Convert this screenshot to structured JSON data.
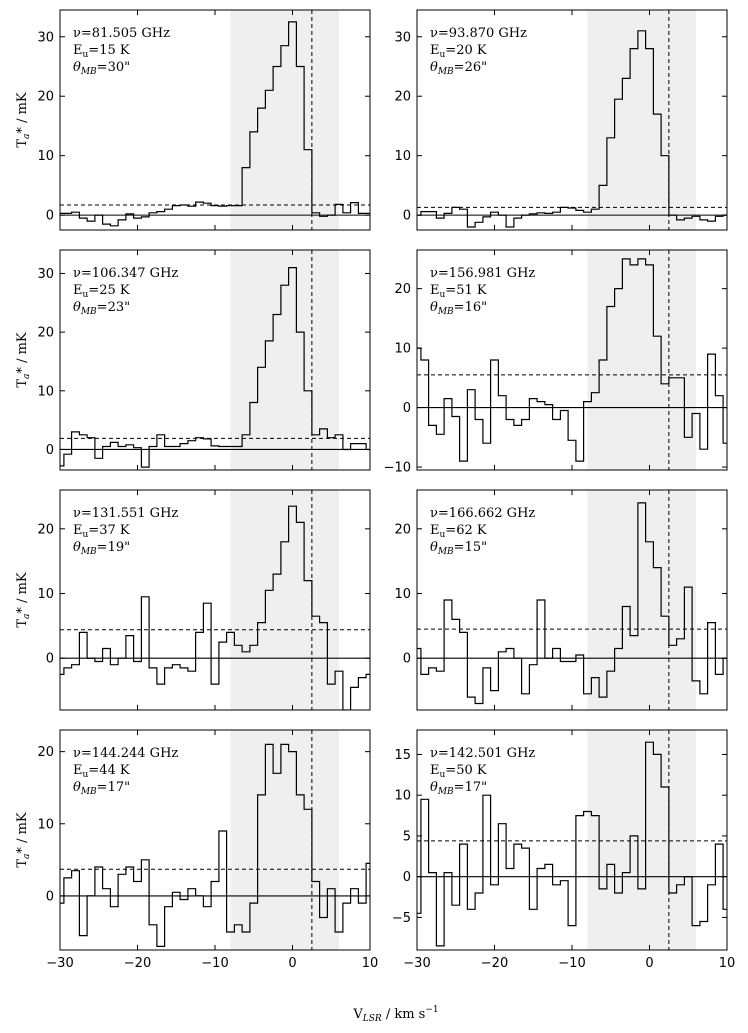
{
  "figure": {
    "xlabel_main": "V",
    "xlabel_sub": "LSR",
    "xlabel_unit": " / km s",
    "xlabel_sup": "−1",
    "ylabel_main": "T",
    "ylabel_sub": "a",
    "ylabel_rest": "* / mK"
  },
  "chart_data": [
    {
      "type": "line",
      "step": true,
      "freq": "ν=81.505 GHz",
      "eu": "E",
      "eu_sub": "u",
      "eu_val": "=15 K",
      "theta": "θ",
      "theta_sub": "MB",
      "theta_val": "=30\"",
      "xlim": [
        -30,
        10
      ],
      "ylim": [
        -2.5,
        34.5
      ],
      "yticks": [
        0,
        10,
        20,
        30
      ],
      "xticks": [
        -30,
        -20,
        -10,
        0,
        10
      ],
      "show_xticklabels": false,
      "show_ylabel": true,
      "noise_level": 1.7,
      "shade": [
        -8,
        6
      ],
      "vline": 2.5,
      "x": [
        -30,
        -29,
        -28,
        -27,
        -26,
        -25,
        -24,
        -23,
        -22,
        -21,
        -20,
        -19,
        -18,
        -17,
        -16,
        -15,
        -14,
        -13,
        -12,
        -11,
        -10,
        -9,
        -8,
        -7,
        -6,
        -5,
        -4,
        -3,
        -2,
        -1,
        0,
        1,
        2,
        3,
        4,
        5,
        6,
        7,
        8,
        9,
        10
      ],
      "y": [
        0.3,
        0.3,
        0.5,
        -0.5,
        -1.0,
        0.0,
        -1.5,
        -1.8,
        -0.8,
        0.2,
        -0.5,
        -0.3,
        0.4,
        0.6,
        1.0,
        1.6,
        1.7,
        1.5,
        2.2,
        2.0,
        1.6,
        1.5,
        1.6,
        1.6,
        8.0,
        14.0,
        18.0,
        21.0,
        25.0,
        28.5,
        32.5,
        25.0,
        11.0,
        0.4,
        -0.2,
        0.0,
        1.8,
        0.4,
        2.1,
        0.3,
        0.3
      ]
    },
    {
      "type": "line",
      "step": true,
      "freq": "ν=93.870 GHz",
      "eu": "E",
      "eu_sub": "u",
      "eu_val": "=20 K",
      "theta": "θ",
      "theta_sub": "MB",
      "theta_val": "=26\"",
      "xlim": [
        -30,
        10
      ],
      "ylim": [
        -2.5,
        34.5
      ],
      "yticks": [
        0,
        10,
        20,
        30
      ],
      "xticks": [
        -30,
        -20,
        -10,
        0,
        10
      ],
      "show_xticklabels": false,
      "show_ylabel": false,
      "noise_level": 1.3,
      "shade": [
        -8,
        6
      ],
      "vline": 2.5,
      "x": [
        -30,
        -29,
        -28,
        -27,
        -26,
        -25,
        -24,
        -23,
        -22,
        -21,
        -20,
        -19,
        -18,
        -17,
        -16,
        -15,
        -14,
        -13,
        -12,
        -11,
        -10,
        -9,
        -8,
        -7,
        -6,
        -5,
        -4,
        -3,
        -2,
        -1,
        0,
        1,
        2,
        3,
        4,
        5,
        6,
        7,
        8,
        9,
        10
      ],
      "y": [
        0.0,
        0.6,
        0.6,
        -0.5,
        0.3,
        1.3,
        1.0,
        -2.0,
        -1.2,
        -0.3,
        0.5,
        0.0,
        -2.0,
        -0.5,
        0.0,
        0.2,
        0.4,
        0.3,
        0.5,
        1.3,
        1.2,
        0.8,
        0.5,
        1.0,
        5.0,
        13.0,
        19.5,
        23.0,
        28.0,
        31.0,
        28.0,
        17.0,
        10.0,
        0.0,
        -0.8,
        -0.5,
        -0.2,
        -0.8,
        -1.0,
        -0.2,
        0.0
      ]
    },
    {
      "type": "line",
      "step": true,
      "freq": "ν=106.347 GHz",
      "eu": "E",
      "eu_sub": "u",
      "eu_val": "=25 K",
      "theta": "θ",
      "theta_sub": "MB",
      "theta_val": "=23\"",
      "xlim": [
        -30,
        10
      ],
      "ylim": [
        -3.5,
        34.0
      ],
      "yticks": [
        0,
        10,
        20,
        30
      ],
      "xticks": [
        -30,
        -20,
        -10,
        0,
        10
      ],
      "show_xticklabels": false,
      "show_ylabel": true,
      "noise_level": 1.9,
      "shade": [
        -8,
        6
      ],
      "vline": 2.5,
      "x": [
        -30,
        -29,
        -28,
        -27,
        -26,
        -25,
        -24,
        -23,
        -22,
        -21,
        -20,
        -19,
        -18,
        -17,
        -16,
        -15,
        -14,
        -13,
        -12,
        -11,
        -10,
        -9,
        -8,
        -7,
        -6,
        -5,
        -4,
        -3,
        -2,
        -1,
        0,
        1,
        2,
        3,
        4,
        5,
        6,
        7,
        8,
        9,
        10
      ],
      "y": [
        -2.8,
        -0.8,
        3.0,
        2.5,
        2.0,
        -1.5,
        0.5,
        1.2,
        0.5,
        0.8,
        0.3,
        -3.0,
        0.5,
        2.5,
        0.5,
        0.5,
        1.0,
        1.5,
        2.0,
        1.8,
        0.6,
        0.5,
        0.5,
        0.5,
        2.5,
        8.0,
        14.0,
        18.5,
        23.0,
        28.0,
        31.0,
        20.0,
        10.0,
        2.5,
        3.5,
        2.0,
        2.5,
        0.0,
        1.0,
        1.0,
        0.0
      ]
    },
    {
      "type": "line",
      "step": true,
      "freq": "ν=156.981 GHz",
      "eu": "E",
      "eu_sub": "u",
      "eu_val": "=51 K",
      "theta": "θ",
      "theta_sub": "MB",
      "theta_val": "=16\"",
      "xlim": [
        -30,
        10
      ],
      "ylim": [
        -10.5,
        26.5
      ],
      "yticks": [
        -10,
        0,
        10,
        20
      ],
      "xticks": [
        -30,
        -20,
        -10,
        0,
        10
      ],
      "show_xticklabels": false,
      "show_ylabel": false,
      "noise_level": 5.5,
      "shade": [
        -8,
        6
      ],
      "vline": 2.5,
      "x": [
        -30,
        -29,
        -28,
        -27,
        -26,
        -25,
        -24,
        -23,
        -22,
        -21,
        -20,
        -19,
        -18,
        -17,
        -16,
        -15,
        -14,
        -13,
        -12,
        -11,
        -10,
        -9,
        -8,
        -7,
        -6,
        -5,
        -4,
        -3,
        -2,
        -1,
        0,
        1,
        2,
        3,
        4,
        5,
        6,
        7,
        8,
        9,
        10
      ],
      "y": [
        10.0,
        8.0,
        -3.0,
        -4.5,
        1.5,
        -1.5,
        -9.0,
        3.0,
        -2.0,
        -6.0,
        8.0,
        2.0,
        -2.0,
        -3.0,
        -2.0,
        1.5,
        1.0,
        0.5,
        -2.0,
        -0.5,
        -5.5,
        -9.0,
        1.0,
        2.5,
        8.0,
        17.0,
        20.0,
        25.0,
        24.0,
        25.0,
        24.0,
        12.0,
        4.0,
        5.0,
        5.0,
        -5.0,
        -1.0,
        -7.0,
        9.0,
        2.0,
        -6.0
      ]
    },
    {
      "type": "line",
      "step": true,
      "freq": "ν=131.551 GHz",
      "eu": "E",
      "eu_sub": "u",
      "eu_val": "=37 K",
      "theta": "θ",
      "theta_sub": "MB",
      "theta_val": "=19\"",
      "xlim": [
        -30,
        10
      ],
      "ylim": [
        -8.0,
        26.0
      ],
      "yticks": [
        0,
        10,
        20
      ],
      "xticks": [
        -30,
        -20,
        -10,
        0,
        10
      ],
      "show_xticklabels": false,
      "show_ylabel": true,
      "noise_level": 4.4,
      "shade": [
        -8,
        6
      ],
      "vline": 2.5,
      "x": [
        -30,
        -29,
        -28,
        -27,
        -26,
        -25,
        -24,
        -23,
        -22,
        -21,
        -20,
        -19,
        -18,
        -17,
        -16,
        -15,
        -14,
        -13,
        -12,
        -11,
        -10,
        -9,
        -8,
        -7,
        -6,
        -5,
        -4,
        -3,
        -2,
        -1,
        0,
        1,
        2,
        3,
        4,
        5,
        6,
        7,
        8,
        9,
        10
      ],
      "y": [
        -2.5,
        -1.5,
        -1.0,
        4.0,
        0.0,
        -0.5,
        1.5,
        -1.0,
        0.0,
        3.5,
        -0.5,
        9.5,
        -1.5,
        -4.0,
        -1.5,
        -1.0,
        -1.5,
        -2.0,
        4.0,
        8.5,
        -4.0,
        2.5,
        4.0,
        2.0,
        1.0,
        2.0,
        5.5,
        10.5,
        13.0,
        18.0,
        23.5,
        21.0,
        12.0,
        6.5,
        5.5,
        -4.0,
        -2.0,
        -8.0,
        -4.5,
        -3.0,
        -2.5
      ]
    },
    {
      "type": "line",
      "step": true,
      "freq": "ν=166.662 GHz",
      "eu": "E",
      "eu_sub": "u",
      "eu_val": "=62 K",
      "theta": "θ",
      "theta_sub": "MB",
      "theta_val": "=15\"",
      "xlim": [
        -30,
        10
      ],
      "ylim": [
        -8.0,
        26.0
      ],
      "yticks": [
        0,
        10,
        20
      ],
      "xticks": [
        -30,
        -20,
        -10,
        0,
        10
      ],
      "show_xticklabels": false,
      "show_ylabel": false,
      "noise_level": 4.5,
      "shade": [
        -8,
        6
      ],
      "vline": 2.5,
      "x": [
        -30,
        -29,
        -28,
        -27,
        -26,
        -25,
        -24,
        -23,
        -22,
        -21,
        -20,
        -19,
        -18,
        -17,
        -16,
        -15,
        -14,
        -13,
        -12,
        -11,
        -10,
        -9,
        -8,
        -7,
        -6,
        -5,
        -4,
        -3,
        -2,
        -1,
        0,
        1,
        2,
        3,
        4,
        5,
        6,
        7,
        8,
        9,
        10
      ],
      "y": [
        1.5,
        -2.5,
        -1.5,
        -2.0,
        9.0,
        6.0,
        4.0,
        -6.0,
        -7.0,
        -1.5,
        -5.0,
        1.0,
        1.5,
        0.0,
        -5.5,
        -1.0,
        9.0,
        0.0,
        1.5,
        -0.5,
        -0.5,
        0.5,
        -5.5,
        -3.0,
        -6.0,
        -2.0,
        1.5,
        8.0,
        3.5,
        24.0,
        18.0,
        14.0,
        6.5,
        2.0,
        3.0,
        11.0,
        -3.5,
        -5.5,
        5.5,
        -2.5,
        0.0
      ]
    },
    {
      "type": "line",
      "step": true,
      "freq": "ν=144.244 GHz",
      "eu": "E",
      "eu_sub": "u",
      "eu_val": "=44 K",
      "theta": "θ",
      "theta_sub": "MB",
      "theta_val": "=17\"",
      "xlim": [
        -30,
        10
      ],
      "ylim": [
        -7.5,
        23.0
      ],
      "yticks": [
        0,
        10,
        20
      ],
      "xticks": [
        -30,
        -20,
        -10,
        0,
        10
      ],
      "show_xticklabels": true,
      "show_ylabel": true,
      "noise_level": 3.7,
      "shade": [
        -8,
        6
      ],
      "vline": 2.5,
      "x": [
        -30,
        -29,
        -28,
        -27,
        -26,
        -25,
        -24,
        -23,
        -22,
        -21,
        -20,
        -19,
        -18,
        -17,
        -16,
        -15,
        -14,
        -13,
        -12,
        -11,
        -10,
        -9,
        -8,
        -7,
        -6,
        -5,
        -4,
        -3,
        -2,
        -1,
        0,
        1,
        2,
        3,
        4,
        5,
        6,
        7,
        8,
        9,
        10
      ],
      "y": [
        -1.0,
        2.5,
        3.5,
        -5.5,
        0.0,
        4.0,
        1.0,
        -1.5,
        3.0,
        4.0,
        2.0,
        5.0,
        -4.0,
        -7.0,
        -1.5,
        0.5,
        -0.5,
        1.0,
        0.0,
        -1.5,
        2.0,
        9.0,
        -5.0,
        -4.0,
        -5.0,
        -1.0,
        14.0,
        21.0,
        17.0,
        21.0,
        20.0,
        14.0,
        12.0,
        2.0,
        -3.0,
        1.0,
        -5.0,
        -1.0,
        1.0,
        -1.0,
        4.5
      ]
    },
    {
      "type": "line",
      "step": true,
      "freq": "ν=142.501 GHz",
      "eu": "E",
      "eu_sub": "u",
      "eu_val": "=50 K",
      "theta": "θ",
      "theta_sub": "MB",
      "theta_val": "=17\"",
      "xlim": [
        -30,
        10
      ],
      "ylim": [
        -9.0,
        18.0
      ],
      "yticks": [
        -5,
        0,
        5,
        10,
        15
      ],
      "xticks": [
        -30,
        -20,
        -10,
        0,
        10
      ],
      "show_xticklabels": true,
      "show_ylabel": false,
      "noise_level": 4.4,
      "shade": [
        -8,
        6
      ],
      "vline": 2.5,
      "x": [
        -30,
        -29,
        -28,
        -27,
        -26,
        -25,
        -24,
        -23,
        -22,
        -21,
        -20,
        -19,
        -18,
        -17,
        -16,
        -15,
        -14,
        -13,
        -12,
        -11,
        -10,
        -9,
        -8,
        -7,
        -6,
        -5,
        -4,
        -3,
        -2,
        -1,
        0,
        1,
        2,
        3,
        4,
        5,
        6,
        7,
        8,
        9,
        10
      ],
      "y": [
        -4.5,
        9.5,
        0.5,
        -8.5,
        0.5,
        -3.5,
        4.0,
        -4.0,
        -2.0,
        10.0,
        -1.0,
        6.5,
        1.0,
        4.0,
        3.5,
        -4.0,
        1.0,
        1.5,
        -1.0,
        -0.5,
        -6.0,
        7.5,
        8.0,
        7.5,
        -1.5,
        1.5,
        -2.0,
        0.5,
        5.0,
        -1.5,
        16.5,
        15.0,
        11.0,
        -2.0,
        -1.0,
        0.0,
        -6.0,
        -5.5,
        -1.0,
        4.0,
        -4.0
      ]
    }
  ]
}
